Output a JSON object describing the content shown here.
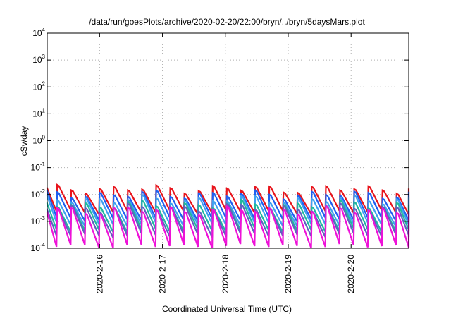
{
  "chart_data": {
    "type": "line",
    "title": "/data/run/goesPlots/archive/2020-02-20/22:00/bryn/../bryn/5daysMars.plot",
    "xlabel": "Coordinated Universal Time (UTC)",
    "ylabel": "cSv/day",
    "yscale": "log",
    "ylim": [
      0.0001,
      10000
    ],
    "xlim": [
      "2020-02-15T04:00",
      "2020-02-20T22:00"
    ],
    "grid": true,
    "x_ticks": [
      "2020-2-16",
      "2020-2-17",
      "2020-2-18",
      "2020-2-19",
      "2020-2-20"
    ],
    "y_ticks": [
      {
        "base": "10",
        "exp": "-4"
      },
      {
        "base": "10",
        "exp": "-3"
      },
      {
        "base": "10",
        "exp": "-2"
      },
      {
        "base": "10",
        "exp": "-1"
      },
      {
        "base": "10",
        "exp": "0"
      },
      {
        "base": "10",
        "exp": "1"
      },
      {
        "base": "10",
        "exp": "2"
      },
      {
        "base": "10",
        "exp": "3"
      },
      {
        "base": "10",
        "exp": "4"
      }
    ],
    "sawtooth_cycle_hours": 5.4,
    "series": [
      {
        "color": "#e8141c",
        "peak": 0.016,
        "trough": 0.0022
      },
      {
        "color": "#1e5ff0",
        "peak": 0.01,
        "trough": 0.0012
      },
      {
        "color": "#3ea0f0",
        "peak": 0.0065,
        "trough": 0.00075
      },
      {
        "color": "#20b8a0",
        "peak": 0.0042,
        "trough": 0.00045
      },
      {
        "color": "#6060c0",
        "peak": 0.0032,
        "trough": 0.0003
      },
      {
        "color": "#ee12d8",
        "peak": 0.0026,
        "trough": 0.00012
      }
    ]
  }
}
